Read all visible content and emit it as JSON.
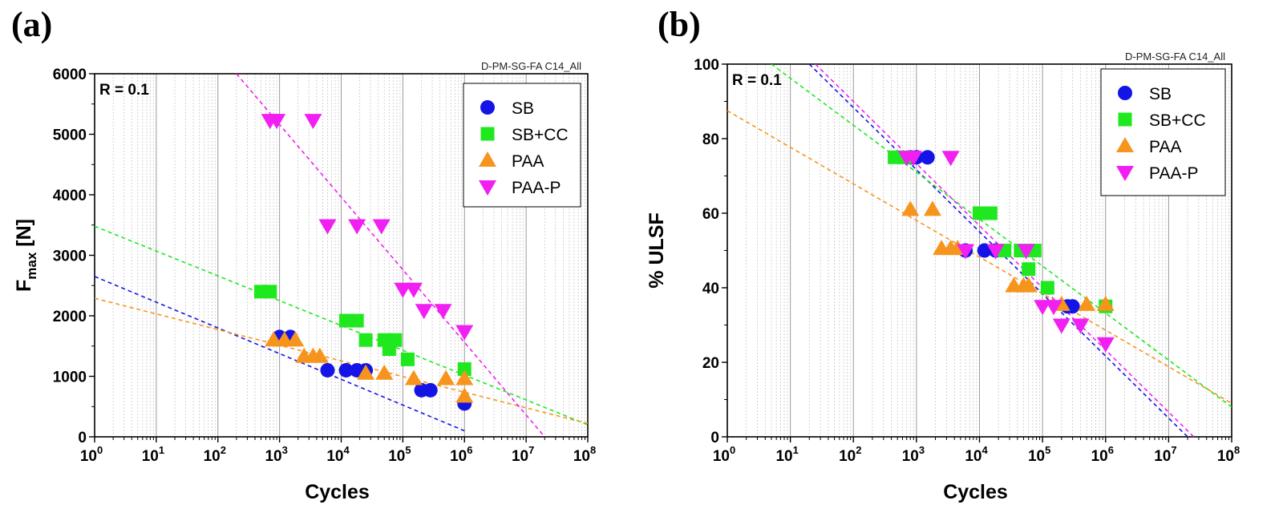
{
  "charts": [
    {
      "panel_label": "(a)",
      "type": "scatter",
      "code_label": "D-PM-SG-FA C14_All",
      "r_label": "R = 0.1",
      "title": "",
      "xlabel": "Cycles",
      "ylabel_main": "F",
      "ylabel_sub": "max",
      "ylabel_unit": " [N]",
      "xscale": "log",
      "xlim": [
        1,
        100000000
      ],
      "ylim": [
        0,
        6000
      ],
      "yticks": [
        0,
        1000,
        2000,
        3000,
        4000,
        5000,
        6000
      ],
      "xtick_exponents": [
        0,
        1,
        2,
        3,
        4,
        5,
        6,
        7,
        8
      ],
      "xtick_base": "10",
      "legend_position": "top-right",
      "series": [
        {
          "name": "SB",
          "marker": "circle",
          "color": "#1414e6",
          "points": [
            [
              1000,
              1650
            ],
            [
              1500,
              1650
            ],
            [
              6000,
              1100
            ],
            [
              12000,
              1100
            ],
            [
              18000,
              1100
            ],
            [
              25000,
              1100
            ],
            [
              200000,
              770
            ],
            [
              280000,
              770
            ],
            [
              1000000,
              550
            ]
          ],
          "fit": [
            [
              1,
              2650
            ],
            [
              1000000,
              100
            ]
          ]
        },
        {
          "name": "SB+CC",
          "marker": "square",
          "color": "#1fe81f",
          "points": [
            [
              500,
              2400
            ],
            [
              700,
              2400
            ],
            [
              12000,
              1920
            ],
            [
              18000,
              1920
            ],
            [
              25000,
              1600
            ],
            [
              50000,
              1600
            ],
            [
              60000,
              1450
            ],
            [
              75000,
              1600
            ],
            [
              120000,
              1280
            ],
            [
              1000000,
              1120
            ]
          ],
          "fit": [
            [
              1,
              3480
            ],
            [
              100000000,
              200
            ]
          ]
        },
        {
          "name": "PAA",
          "marker": "triangle-up",
          "color": "#f7941d",
          "points": [
            [
              800,
              1600
            ],
            [
              1200,
              1600
            ],
            [
              1800,
              1600
            ],
            [
              2500,
              1330
            ],
            [
              3500,
              1330
            ],
            [
              4500,
              1330
            ],
            [
              25000,
              1050
            ],
            [
              50000,
              1050
            ],
            [
              150000,
              960
            ],
            [
              500000,
              960
            ],
            [
              1000000,
              960
            ],
            [
              1000000,
              670
            ]
          ],
          "fit": [
            [
              1,
              2290
            ],
            [
              100000000,
              220
            ]
          ]
        },
        {
          "name": "PAA-P",
          "marker": "triangle-down",
          "color": "#f21ff2",
          "points": [
            [
              700,
              5230
            ],
            [
              900,
              5230
            ],
            [
              3500,
              5230
            ],
            [
              6000,
              3490
            ],
            [
              18000,
              3490
            ],
            [
              45000,
              3490
            ],
            [
              100000,
              2440
            ],
            [
              150000,
              2440
            ],
            [
              220000,
              2090
            ],
            [
              450000,
              2090
            ],
            [
              1000000,
              1740
            ]
          ],
          "fit": [
            [
              200,
              6000
            ],
            [
              20000000,
              0
            ]
          ]
        }
      ]
    },
    {
      "panel_label": "(b)",
      "type": "scatter",
      "code_label": "D-PM-SG-FA C14_All",
      "r_label": "R = 0.1",
      "title": "",
      "xlabel": "Cycles",
      "ylabel_main": "% ULSF",
      "ylabel_sub": "",
      "ylabel_unit": "",
      "xscale": "log",
      "xlim": [
        1,
        100000000
      ],
      "ylim": [
        0,
        100
      ],
      "yticks": [
        0,
        20,
        40,
        60,
        80,
        100
      ],
      "xtick_exponents": [
        0,
        1,
        2,
        3,
        4,
        5,
        6,
        7,
        8
      ],
      "xtick_base": "10",
      "legend_position": "top-right",
      "series": [
        {
          "name": "SB",
          "marker": "circle",
          "color": "#1414e6",
          "points": [
            [
              800,
              75
            ],
            [
              1000,
              75
            ],
            [
              1500,
              75
            ],
            [
              6000,
              50
            ],
            [
              12000,
              50
            ],
            [
              18000,
              50
            ],
            [
              250000,
              35
            ],
            [
              300000,
              35
            ]
          ],
          "fit": [
            [
              20,
              100
            ],
            [
              20000000,
              0
            ]
          ]
        },
        {
          "name": "SB+CC",
          "marker": "square",
          "color": "#1fe81f",
          "points": [
            [
              450,
              75
            ],
            [
              650,
              75
            ],
            [
              10000,
              60
            ],
            [
              15000,
              60
            ],
            [
              25000,
              50
            ],
            [
              45000,
              50
            ],
            [
              60000,
              45
            ],
            [
              75000,
              50
            ],
            [
              120000,
              40
            ],
            [
              1000000,
              35
            ]
          ],
          "fit": [
            [
              5,
              100
            ],
            [
              100000000,
              8
            ]
          ]
        },
        {
          "name": "PAA",
          "marker": "triangle-up",
          "color": "#f7941d",
          "points": [
            [
              800,
              61
            ],
            [
              1800,
              61
            ],
            [
              2500,
              50.5
            ],
            [
              3500,
              50.5
            ],
            [
              4500,
              50.5
            ],
            [
              35000,
              40.5
            ],
            [
              50000,
              40.5
            ],
            [
              60000,
              40.5
            ],
            [
              200000,
              35.5
            ],
            [
              500000,
              35.5
            ],
            [
              1000000,
              35.5
            ]
          ],
          "fit": [
            [
              1,
              87.5
            ],
            [
              100000000,
              9
            ]
          ]
        },
        {
          "name": "PAA-P",
          "marker": "triangle-down",
          "color": "#f21ff2",
          "points": [
            [
              700,
              75
            ],
            [
              900,
              75
            ],
            [
              3500,
              75
            ],
            [
              6000,
              50
            ],
            [
              18000,
              50
            ],
            [
              55000,
              50
            ],
            [
              100000,
              35
            ],
            [
              150000,
              35
            ],
            [
              200000,
              30
            ],
            [
              400000,
              30
            ],
            [
              1000000,
              25
            ]
          ],
          "fit": [
            [
              25,
              100
            ],
            [
              25000000,
              0
            ]
          ]
        }
      ]
    }
  ]
}
